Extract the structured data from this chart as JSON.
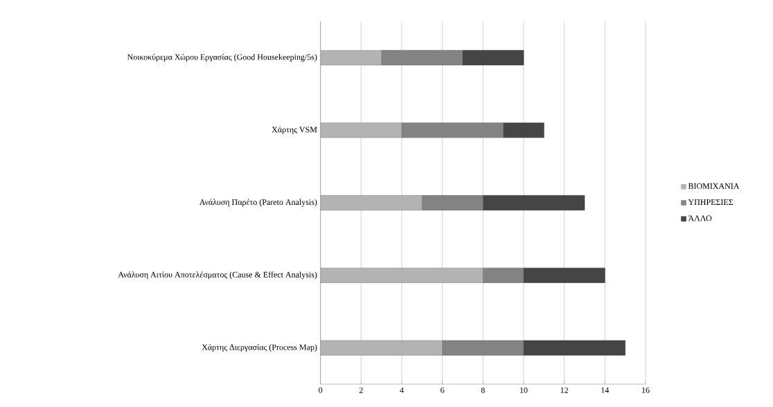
{
  "chart_data": {
    "type": "bar",
    "orientation": "horizontal",
    "stacked": true,
    "categories": [
      "Νοικοκύρεμα Χώρου Εργασίας (Good Housekeeping/5s)",
      "Χάρτης VSM",
      "Ανάλυση Παρέτο (Pareto Analysis)",
      "Ανάλυση Αιτίου Αποτελέσματος (Cause & Effect Analysis)",
      "Χάρτης Διεργασίας (Process Map)"
    ],
    "series": [
      {
        "name": "ΒΙΟΜΙΧΑΝΙΑ",
        "color": "#b3b3b3",
        "values": [
          3,
          4,
          5,
          8,
          6
        ]
      },
      {
        "name": "ΥΠΗΡΕΣΙΕΣ",
        "color": "#838383",
        "values": [
          4,
          5,
          3,
          2,
          4
        ]
      },
      {
        "name": "ΆΛΛΟ",
        "color": "#454545",
        "values": [
          3,
          2,
          5,
          4,
          5
        ]
      }
    ],
    "xlim": [
      0,
      16
    ],
    "xticks": [
      0,
      2,
      4,
      6,
      8,
      10,
      12,
      14,
      16
    ],
    "grid": "x",
    "legend": "right"
  }
}
